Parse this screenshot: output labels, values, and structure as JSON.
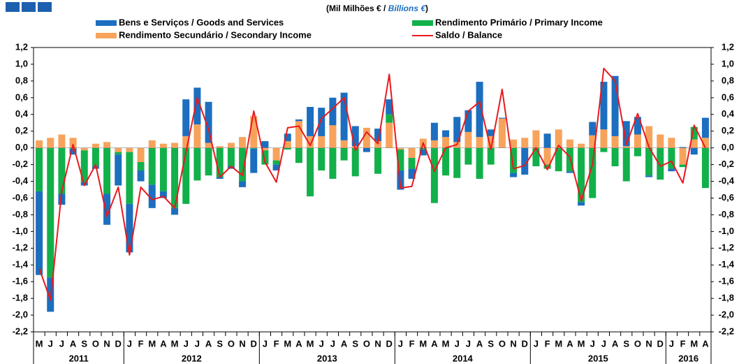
{
  "chart_data": {
    "type": "bar",
    "stacked": true,
    "title": [
      "(Mil Milhões € / ",
      "Billions €",
      ")"
    ],
    "categories": [
      "M",
      "J",
      "J",
      "A",
      "S",
      "O",
      "N",
      "D",
      "J",
      "F",
      "M",
      "A",
      "M",
      "J",
      "J",
      "A",
      "S",
      "O",
      "N",
      "D",
      "J",
      "F",
      "M",
      "A",
      "M",
      "J",
      "J",
      "A",
      "S",
      "O",
      "N",
      "D",
      "J",
      "F",
      "M",
      "A",
      "M",
      "J",
      "J",
      "A",
      "S",
      "O",
      "N",
      "D",
      "J",
      "F",
      "M",
      "A",
      "M",
      "J",
      "J",
      "A",
      "S",
      "O",
      "N",
      "D",
      "J",
      "F",
      "M",
      "A"
    ],
    "years": [
      "2011",
      "2012",
      "2013",
      "2014",
      "2015",
      "2016"
    ],
    "series": [
      {
        "name": "Bens e Serviços / Goods and Services",
        "color": "#1c6ebf",
        "type": "bar",
        "values": [
          -1.0,
          -0.41,
          -0.13,
          -0.07,
          -0.04,
          -0.03,
          -0.37,
          -0.37,
          -0.58,
          -0.13,
          -0.28,
          -0.08,
          -0.08,
          0.44,
          0.44,
          0.49,
          -0.02,
          -0.03,
          -0.07,
          -0.29,
          0.08,
          -0.07,
          0.09,
          0.02,
          0.35,
          0.34,
          0.33,
          0.57,
          0.24,
          -0.05,
          0.15,
          0.18,
          -0.23,
          -0.12,
          -0.07,
          0.21,
          0.08,
          0.3,
          0.26,
          0.66,
          0.08,
          0.01,
          -0.05,
          -0.32,
          0.0,
          0.17,
          0.0,
          -0.02,
          -0.04,
          0.16,
          0.57,
          0.72,
          0.3,
          0.21,
          -0.02,
          0.0,
          -0.03,
          0.01,
          -0.08,
          0.24
        ]
      },
      {
        "name": "Rendimento Primário / Primary Income",
        "color": "#12b04a",
        "type": "bar",
        "values": [
          -0.52,
          -1.55,
          -0.55,
          -0.01,
          -0.38,
          -0.22,
          -0.55,
          -0.03,
          -0.62,
          -0.1,
          -0.44,
          -0.52,
          -0.72,
          -0.67,
          -0.39,
          -0.33,
          -0.35,
          -0.22,
          -0.4,
          -0.01,
          -0.17,
          -0.05,
          -0.02,
          -0.18,
          -0.58,
          -0.27,
          -0.37,
          -0.15,
          -0.34,
          0.0,
          -0.31,
          0.1,
          -0.25,
          -0.13,
          -0.02,
          -0.66,
          -0.33,
          -0.36,
          -0.2,
          -0.37,
          -0.2,
          0.0,
          -0.3,
          0.0,
          -0.22,
          -0.05,
          -0.28,
          -0.28,
          -0.65,
          -0.6,
          -0.05,
          -0.22,
          -0.4,
          -0.1,
          -0.33,
          -0.38,
          -0.25,
          -0.03,
          0.15,
          -0.48
        ]
      },
      {
        "name": "Rendimento Secundário / Secondary Income",
        "color": "#f7a35c",
        "type": "bar",
        "values": [
          0.09,
          0.12,
          0.16,
          0.12,
          -0.03,
          0.05,
          0.07,
          -0.05,
          -0.05,
          -0.17,
          0.09,
          0.05,
          0.06,
          0.14,
          0.28,
          0.06,
          0.02,
          0.06,
          0.13,
          0.38,
          -0.03,
          -0.15,
          0.08,
          0.32,
          0.14,
          0.14,
          0.27,
          0.09,
          0.02,
          0.24,
          0.08,
          0.3,
          -0.02,
          -0.12,
          0.11,
          0.09,
          0.13,
          0.07,
          0.19,
          0.13,
          0.14,
          0.35,
          0.1,
          0.12,
          0.21,
          -0.2,
          0.22,
          0.1,
          0.05,
          0.15,
          0.22,
          0.14,
          0.02,
          0.16,
          0.26,
          0.16,
          0.12,
          -0.2,
          0.1,
          0.12
        ]
      },
      {
        "name": "Saldo / Balance",
        "color": "#e8191e",
        "type": "line",
        "values": [
          -1.44,
          -1.82,
          -0.52,
          0.04,
          -0.45,
          -0.2,
          -0.82,
          -0.47,
          -1.28,
          -0.47,
          -0.62,
          -0.58,
          -0.72,
          -0.05,
          0.6,
          0.22,
          -0.35,
          -0.22,
          -0.33,
          0.44,
          -0.17,
          -0.41,
          0.24,
          0.26,
          0.03,
          0.35,
          0.47,
          0.6,
          -0.03,
          0.19,
          0.05,
          0.88,
          -0.48,
          -0.46,
          0.06,
          -0.28,
          0.0,
          0.04,
          0.44,
          0.55,
          -0.02,
          0.7,
          -0.25,
          -0.21,
          0.0,
          -0.26,
          0.03,
          -0.11,
          -0.63,
          -0.2,
          0.95,
          0.8,
          0.04,
          0.41,
          0.01,
          -0.22,
          -0.16,
          -0.42,
          0.27,
          0.0
        ]
      }
    ],
    "ylim": [
      -2.2,
      1.2
    ],
    "yticks": [
      {
        "value": -2.2,
        "label": "-2,2"
      },
      {
        "value": -2.0,
        "label": "-2,0"
      },
      {
        "value": -1.8,
        "label": "-1,8"
      },
      {
        "value": -1.6,
        "label": "-1,6"
      },
      {
        "value": -1.4,
        "label": "-1,4"
      },
      {
        "value": -1.2,
        "label": "-1,2"
      },
      {
        "value": -1.0,
        "label": "-1,0"
      },
      {
        "value": -0.8,
        "label": "-0,8"
      },
      {
        "value": -0.6,
        "label": "-0,6"
      },
      {
        "value": -0.4,
        "label": "-0,4"
      },
      {
        "value": -0.2,
        "label": "-0,2"
      },
      {
        "value": 0,
        "label": "0,0"
      },
      {
        "value": 0.2,
        "label": "0,2"
      },
      {
        "value": 0.4,
        "label": "0,4"
      },
      {
        "value": 0.6,
        "label": "0,6"
      },
      {
        "value": 0.8,
        "label": "0,8"
      },
      {
        "value": 1.0,
        "label": "1,0"
      },
      {
        "value": 1.2,
        "label": "1,2"
      }
    ],
    "y2lim": [
      -2.2,
      1.2
    ],
    "y2ticks": [
      {
        "value": -2.2,
        "label": "-2,2"
      },
      {
        "value": -2.0,
        "label": "-2,0"
      },
      {
        "value": -1.8,
        "label": "-1,8"
      },
      {
        "value": -1.6,
        "label": "-1,6"
      },
      {
        "value": -1.4,
        "label": "-1,4"
      },
      {
        "value": -1.2,
        "label": "-1,2"
      },
      {
        "value": -1.0,
        "label": "-1,0"
      },
      {
        "value": -0.8,
        "label": "-0,8"
      },
      {
        "value": -0.6,
        "label": "-0,6"
      },
      {
        "value": -0.4,
        "label": "-0,4"
      },
      {
        "value": -0.2,
        "label": "-0,2"
      },
      {
        "value": 0,
        "label": "0,0"
      },
      {
        "value": 0.2,
        "label": "0,2"
      },
      {
        "value": 0.4,
        "label": "0,4"
      },
      {
        "value": 0.6,
        "label": "0,6"
      },
      {
        "value": 0.8,
        "label": "0,8"
      },
      {
        "value": 1.0,
        "label": "1,0"
      },
      {
        "value": 1.2,
        "label": "1,2"
      }
    ],
    "grid": false
  }
}
